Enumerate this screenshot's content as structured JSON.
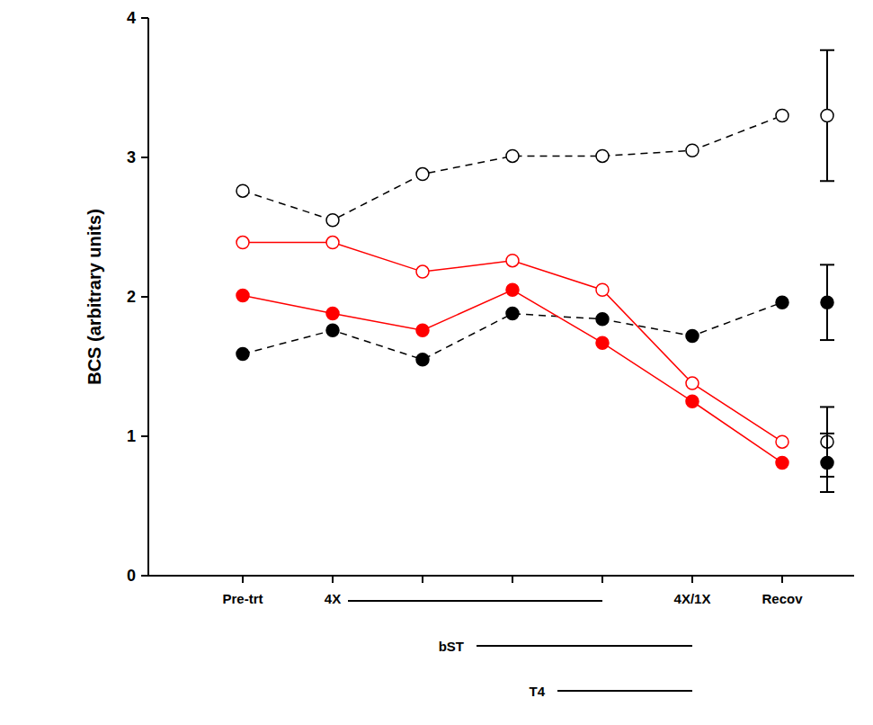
{
  "chart_data": {
    "type": "line",
    "ylabel": "BCS (arbitrary units)",
    "categories": [
      "Pre-trt",
      "4X",
      null,
      null,
      null,
      "4X/1X",
      "Recov"
    ],
    "ylim": [
      0,
      4
    ],
    "yticks": [
      0,
      1,
      2,
      3,
      4
    ],
    "series": [
      {
        "color": "#000000",
        "marker": "open_circle",
        "line_style": "dashed",
        "values": [
          2.76,
          2.55,
          2.88,
          3.01,
          3.01,
          3.05,
          3.3
        ],
        "error": 0.47
      },
      {
        "color": "#000000",
        "marker": "filled_circle",
        "line_style": "dashed",
        "values": [
          1.59,
          1.76,
          1.55,
          1.88,
          1.84,
          1.72,
          1.96
        ],
        "error": 0.27
      },
      {
        "color": "#ff0000",
        "marker": "open_circle",
        "line_style": "solid",
        "values": [
          2.39,
          2.39,
          2.18,
          2.26,
          2.05,
          1.38,
          0.96
        ],
        "error": 0.25
      },
      {
        "color": "#ff0000",
        "marker": "filled_circle",
        "line_style": "solid",
        "values": [
          2.01,
          1.88,
          1.76,
          2.05,
          1.67,
          1.25,
          0.81
        ],
        "error": 0.21
      }
    ],
    "treatments": [
      {
        "label": "4X",
        "start": 1,
        "end": 4
      },
      {
        "label": "bST",
        "start": 2.6,
        "end": 5
      },
      {
        "label": "T4",
        "start": 3.5,
        "end": 5
      }
    ]
  }
}
